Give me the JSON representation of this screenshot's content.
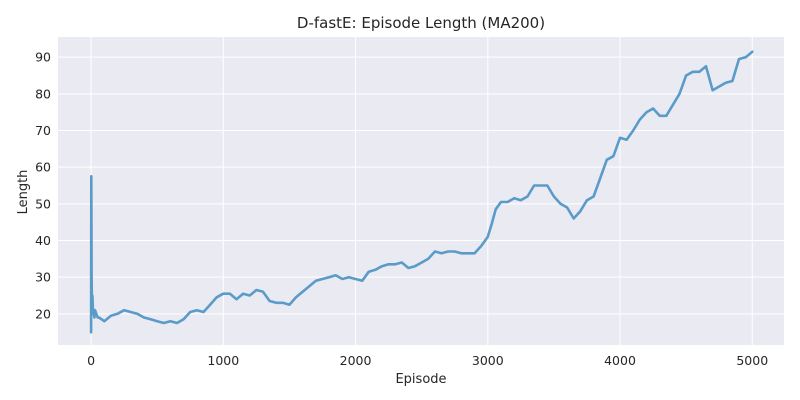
{
  "chart_data": {
    "type": "line",
    "title": "D-fastE: Episode Length (MA200)",
    "xlabel": "Episode",
    "ylabel": "Length",
    "xlim": [
      -250,
      5240
    ],
    "ylim": [
      11.5,
      95.5
    ],
    "xticks": [
      0,
      1000,
      2000,
      3000,
      4000,
      5000
    ],
    "yticks": [
      20,
      30,
      40,
      50,
      60,
      70,
      80,
      90
    ],
    "grid": true,
    "background": "#eaeaf2",
    "series": [
      {
        "color": "#5a9bc9",
        "x": [
          0,
          2,
          4,
          6,
          8,
          10,
          15,
          20,
          25,
          30,
          40,
          50,
          60,
          80,
          100,
          150,
          200,
          250,
          300,
          350,
          400,
          450,
          500,
          550,
          600,
          650,
          700,
          750,
          800,
          850,
          900,
          950,
          1000,
          1050,
          1100,
          1150,
          1200,
          1250,
          1300,
          1350,
          1400,
          1450,
          1500,
          1550,
          1600,
          1650,
          1700,
          1750,
          1800,
          1850,
          1900,
          1950,
          2000,
          2050,
          2100,
          2150,
          2200,
          2250,
          2300,
          2350,
          2400,
          2450,
          2500,
          2550,
          2600,
          2650,
          2700,
          2750,
          2800,
          2850,
          2900,
          2950,
          3000,
          3030,
          3060,
          3100,
          3150,
          3200,
          3250,
          3300,
          3350,
          3400,
          3450,
          3500,
          3550,
          3600,
          3650,
          3700,
          3750,
          3800,
          3850,
          3900,
          3950,
          4000,
          4050,
          4100,
          4150,
          4200,
          4250,
          4300,
          4350,
          4400,
          4450,
          4500,
          4550,
          4600,
          4650,
          4700,
          4750,
          4800,
          4850,
          4900,
          4950,
          5000
        ],
        "y": [
          15,
          57.5,
          30,
          24,
          22,
          25,
          21,
          20,
          19,
          21,
          20,
          19,
          19,
          18.5,
          18,
          19.5,
          20,
          21,
          20.5,
          20,
          19,
          18.5,
          18,
          17.5,
          18,
          17.5,
          18.5,
          20.5,
          21,
          20.5,
          22.5,
          24.5,
          25.5,
          25.5,
          24,
          25.5,
          25,
          26.5,
          26,
          23.5,
          23,
          23,
          22.5,
          24.5,
          26,
          27.5,
          29,
          29.5,
          30,
          30.5,
          29.5,
          30,
          29.5,
          29,
          31.5,
          32,
          33,
          33.5,
          33.5,
          34,
          32.5,
          33,
          34,
          35,
          37,
          36.5,
          37,
          37,
          36.5,
          36.5,
          36.5,
          38.5,
          41,
          44.5,
          48.5,
          50.5,
          50.5,
          51.5,
          51,
          52,
          55,
          55,
          55,
          52,
          50,
          49,
          46,
          48,
          51,
          52,
          57,
          62,
          63,
          68,
          67.5,
          70,
          73,
          75,
          76,
          74,
          74,
          77,
          80,
          85,
          86,
          86,
          87.5,
          81,
          82,
          83,
          83.5,
          89.5,
          90,
          91.5
        ]
      }
    ]
  }
}
